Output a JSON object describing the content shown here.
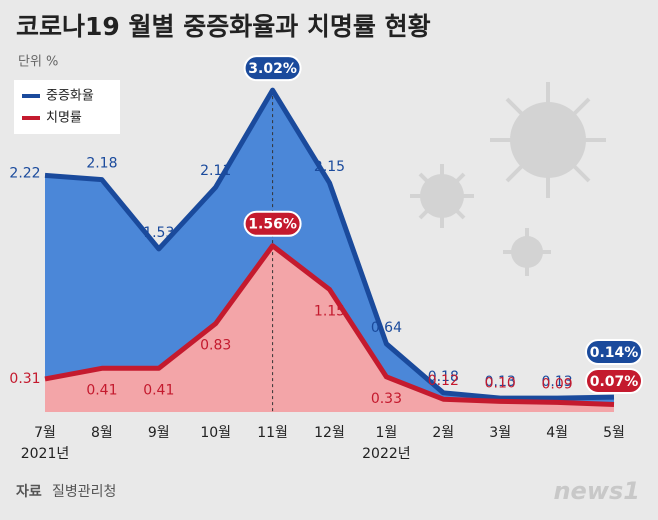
{
  "chart_data": {
    "type": "area",
    "title": "코로나19 월별 중증화율과 치명률 현황",
    "unit_label": "단위 %",
    "source_label": "자료",
    "source": "질병관리청",
    "logo": "news1",
    "categories": [
      "7월",
      "8월",
      "9월",
      "10월",
      "11월",
      "12월",
      "1월",
      "2월",
      "3월",
      "4월",
      "5월"
    ],
    "x_sublabels": [
      "2021년",
      null,
      null,
      null,
      null,
      null,
      "2022년",
      null,
      null,
      null,
      null
    ],
    "ylim": [
      0,
      3.5
    ],
    "series": [
      {
        "name": "중증화율",
        "color": "#1a4a9c",
        "area_color": "#4b87d8",
        "values": [
          2.22,
          2.18,
          1.53,
          2.11,
          3.02,
          2.15,
          0.64,
          0.18,
          0.13,
          0.13,
          0.14
        ],
        "value_labels": [
          "2.22",
          "2.18",
          "1.53",
          "2.11",
          "3.02%",
          "2.15",
          "0.64",
          "0.18",
          "0.13",
          "0.13",
          "0.14%"
        ]
      },
      {
        "name": "치명률",
        "color": "#c41a2e",
        "area_color": "#f3a5a8",
        "values": [
          0.31,
          0.41,
          0.41,
          0.83,
          1.56,
          1.15,
          0.33,
          0.12,
          0.1,
          0.09,
          0.07
        ],
        "value_labels": [
          "0.31",
          "0.41",
          "0.41",
          "0.83",
          "1.56%",
          "1.15",
          "0.33",
          "0.12",
          "0.10",
          "0.09",
          "0.07%"
        ]
      }
    ]
  }
}
